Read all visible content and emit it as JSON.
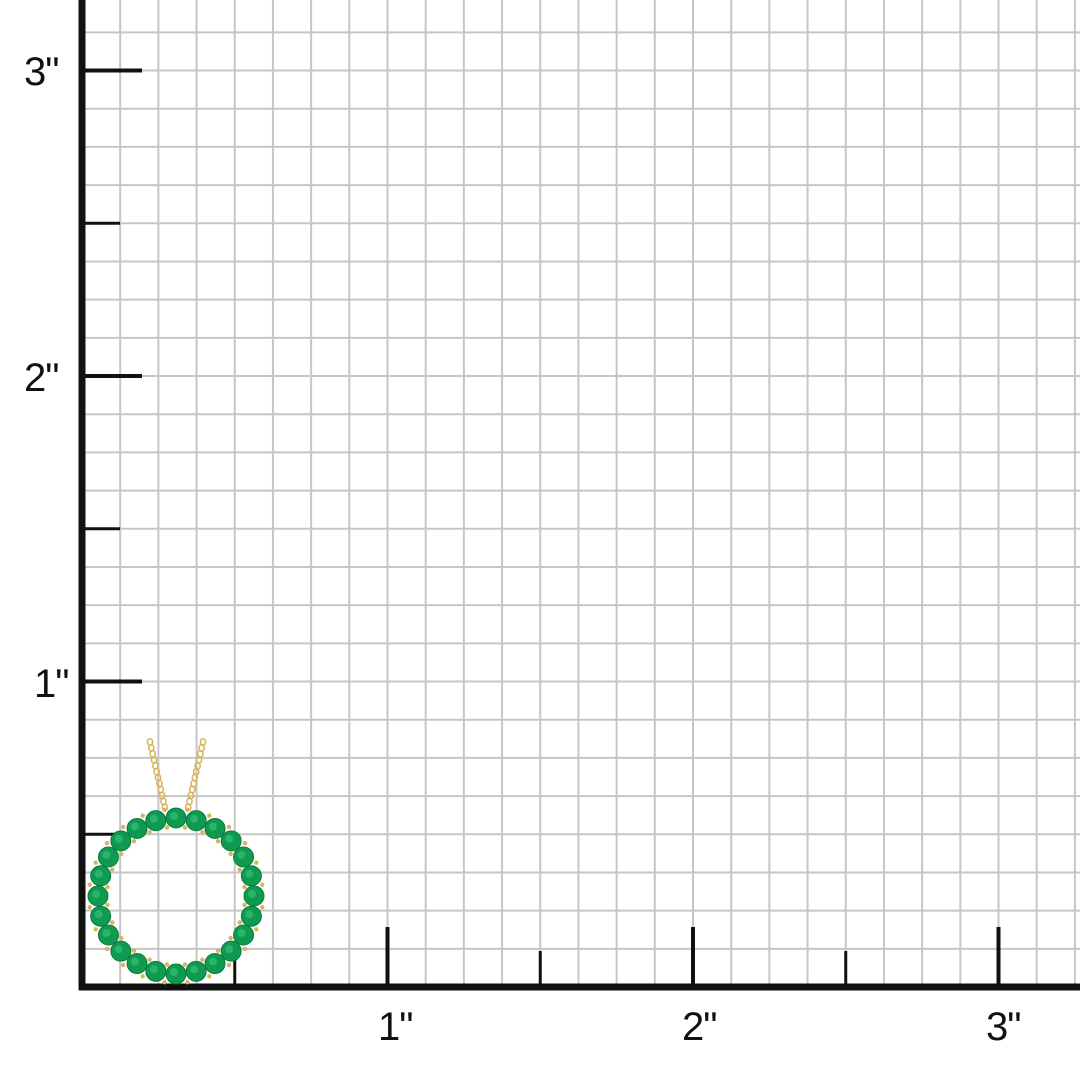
{
  "ruler": {
    "x_labels": [
      "1\"",
      "2\"",
      "3\""
    ],
    "y_labels": [
      "1\"",
      "2\"",
      "3\""
    ],
    "unit": "inch",
    "grid_subdivisions_per_inch": 8
  },
  "product": {
    "type": "circle pendant with chain",
    "stone_color": "#0f9a52",
    "metal_color": "#d9b45a",
    "stone_count": 24
  },
  "colors": {
    "grid": "#c6c6c6",
    "axis": "#111111",
    "background": "#ffffff"
  }
}
